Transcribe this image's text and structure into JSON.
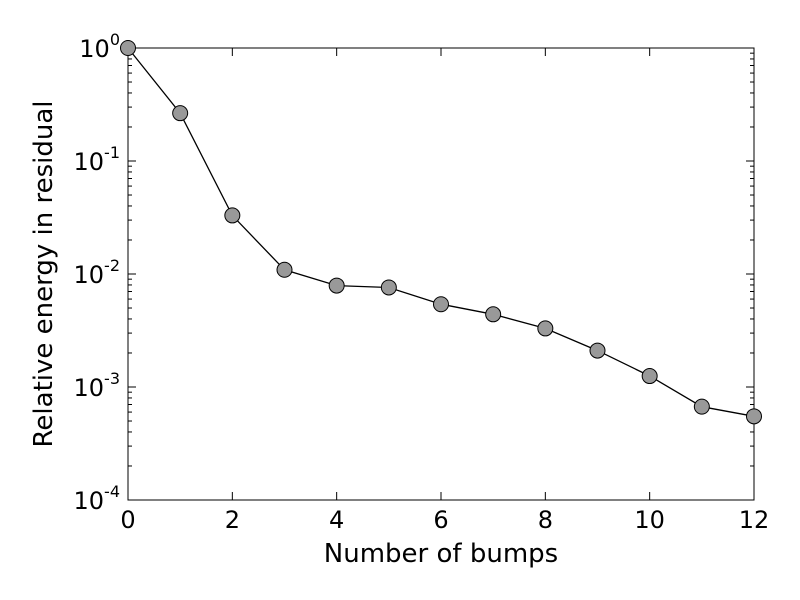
{
  "chart_data": {
    "type": "line",
    "title": "",
    "xlabel": "Number of bumps",
    "ylabel": "Relative energy in residual",
    "xlim": [
      0,
      12
    ],
    "ylim": [
      0.0001,
      1
    ],
    "yscale": "log",
    "grid": false,
    "x_ticks": [
      0,
      2,
      4,
      6,
      8,
      10,
      12
    ],
    "x_tick_labels": [
      "0",
      "2",
      "4",
      "6",
      "8",
      "10",
      "12"
    ],
    "y_ticks": [
      {
        "value": 1,
        "base": "10",
        "exp": "0"
      },
      {
        "value": 0.1,
        "base": "10",
        "exp": "-1"
      },
      {
        "value": 0.01,
        "base": "10",
        "exp": "-2"
      },
      {
        "value": 0.001,
        "base": "10",
        "exp": "-3"
      },
      {
        "value": 0.0001,
        "base": "10",
        "exp": "-4"
      }
    ],
    "series": [
      {
        "x": [
          0,
          1,
          2,
          3,
          4,
          5,
          6,
          7,
          8,
          9,
          10,
          11,
          12
        ],
        "y": [
          1.0,
          0.265,
          0.033,
          0.0109,
          0.0079,
          0.0076,
          0.0054,
          0.0044,
          0.0033,
          0.0021,
          0.00125,
          0.00067,
          0.00055
        ],
        "line_color": "#000000",
        "marker": "circle",
        "marker_color": "#999999",
        "marker_edge_color": "#000000"
      }
    ]
  }
}
